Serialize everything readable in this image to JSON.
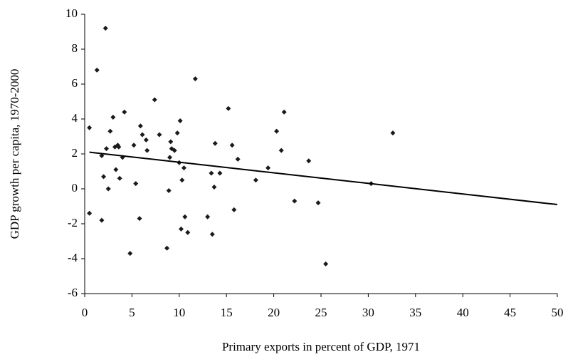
{
  "chart_data": {
    "type": "scatter",
    "xlabel": "Primary exports in percent of GDP, 1971",
    "ylabel": "GDP growth per capita, 1970-2000",
    "x": [
      0.5,
      0.5,
      1.3,
      1.8,
      1.8,
      2.0,
      2.2,
      2.3,
      2.5,
      2.7,
      3.0,
      3.2,
      3.3,
      3.5,
      3.6,
      3.7,
      4.0,
      4.2,
      4.8,
      5.2,
      5.4,
      5.8,
      5.9,
      6.1,
      6.5,
      6.6,
      7.4,
      7.9,
      8.7,
      8.9,
      9.0,
      9.1,
      9.2,
      9.5,
      9.8,
      10.0,
      10.1,
      10.2,
      10.3,
      10.5,
      10.6,
      10.9,
      11.7,
      13.0,
      13.4,
      13.5,
      13.7,
      13.8,
      14.3,
      15.2,
      15.6,
      15.8,
      16.2,
      18.1,
      19.4,
      20.3,
      20.8,
      21.1,
      22.2,
      23.7,
      24.7,
      25.5,
      30.3,
      32.6
    ],
    "values": [
      3.5,
      -1.4,
      6.8,
      1.9,
      -1.8,
      0.7,
      9.2,
      2.3,
      0.0,
      3.3,
      4.1,
      2.4,
      1.1,
      2.5,
      2.4,
      0.6,
      1.8,
      4.4,
      -3.7,
      2.5,
      0.3,
      -1.7,
      3.6,
      3.1,
      2.8,
      2.2,
      5.1,
      3.1,
      -3.4,
      -0.1,
      1.8,
      2.7,
      2.3,
      2.2,
      3.2,
      1.5,
      3.9,
      -2.3,
      0.5,
      1.2,
      -1.6,
      -2.5,
      6.3,
      -1.6,
      0.9,
      -2.6,
      0.1,
      2.6,
      0.9,
      4.6,
      2.5,
      -1.2,
      1.7,
      0.5,
      1.2,
      3.3,
      2.2,
      4.4,
      -0.7,
      1.6,
      -0.8,
      -4.3,
      0.3,
      3.2
    ],
    "color": "#1a1a1a",
    "trendline": {
      "x": [
        0.5,
        50
      ],
      "y": [
        2.1,
        -0.9
      ],
      "color": "#000000"
    },
    "xlim": [
      0,
      50
    ],
    "xticks": [
      0,
      5,
      10,
      15,
      20,
      25,
      30,
      35,
      40,
      45,
      50
    ],
    "ylim": [
      -6,
      10
    ],
    "yticks": [
      -6,
      -4,
      -2,
      0,
      2,
      4,
      6,
      8,
      10
    ]
  }
}
